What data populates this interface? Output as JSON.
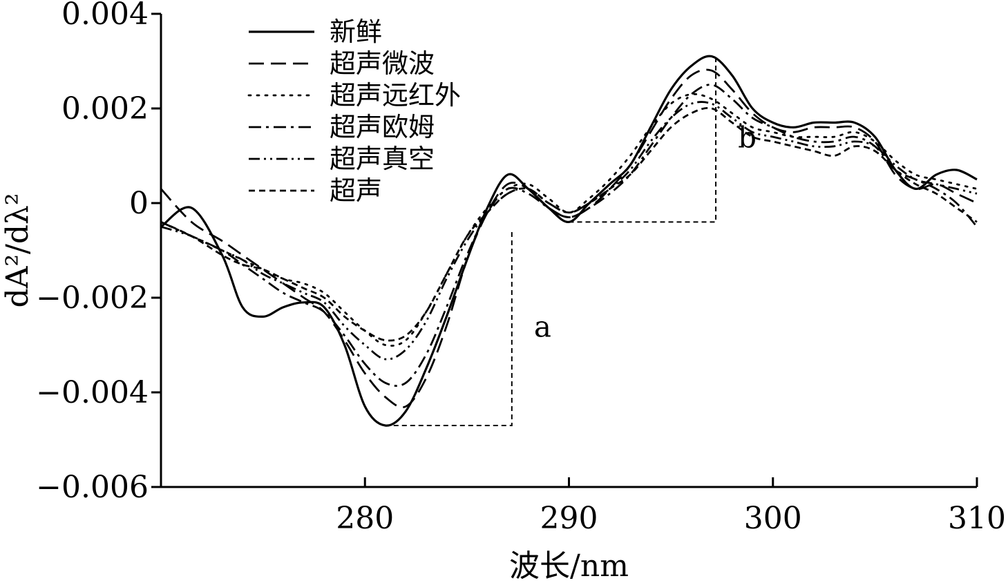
{
  "chart_data": {
    "type": "line",
    "xlabel": "波长/nm",
    "ylabel": "dA²/dλ²",
    "xlim": [
      270,
      310
    ],
    "ylim": [
      -0.006,
      0.004
    ],
    "x_ticks": [
      280,
      290,
      300,
      310
    ],
    "x_tick_labels": [
      "280",
      "290",
      "300",
      "310"
    ],
    "y_ticks": [
      0.004,
      0.002,
      0,
      -0.002,
      -0.004,
      -0.006
    ],
    "y_tick_labels": [
      "0.004",
      "0.002",
      "0",
      "−0.002",
      "−0.004",
      "−0.006"
    ],
    "grid": false,
    "legend_position": "top-left",
    "series": [
      {
        "name": "新鲜",
        "dash": "solid",
        "x": [
          270,
          271.5,
          273,
          274,
          275,
          276,
          277,
          278,
          279,
          280,
          281,
          282,
          283,
          284,
          285,
          286,
          287,
          288,
          289,
          290,
          291,
          292,
          293,
          294,
          295,
          296,
          297,
          298,
          299,
          300,
          301,
          302,
          303,
          304,
          305,
          306,
          307,
          308,
          309,
          310
        ],
        "values": [
          -0.0005,
          -0.0001,
          -0.0011,
          -0.0022,
          -0.0024,
          -0.0022,
          -0.0021,
          -0.0022,
          -0.003,
          -0.0043,
          -0.0047,
          -0.0044,
          -0.0035,
          -0.0024,
          -0.0012,
          -0.0001,
          0.0006,
          0.0003,
          -0.0001,
          -0.0004,
          0.0,
          0.0004,
          0.0008,
          0.0016,
          0.0024,
          0.0029,
          0.0031,
          0.0027,
          0.002,
          0.0017,
          0.0016,
          0.0017,
          0.0017,
          0.0017,
          0.0014,
          0.0007,
          0.0003,
          0.0006,
          0.0007,
          0.0005
        ]
      },
      {
        "name": "超声微波",
        "dash": "dashed",
        "x": [
          270,
          271.5,
          273,
          274,
          275,
          276,
          277,
          278,
          279,
          280,
          281,
          282,
          283,
          284,
          285,
          286,
          287,
          288,
          289,
          290,
          291,
          292,
          293,
          294,
          295,
          296,
          297,
          298,
          299,
          300,
          301,
          302,
          303,
          304,
          305,
          306,
          307,
          308,
          309,
          310
        ],
        "values": [
          0.0003,
          -0.0004,
          -0.0008,
          -0.0011,
          -0.0014,
          -0.0017,
          -0.002,
          -0.0023,
          -0.0029,
          -0.0036,
          -0.0041,
          -0.0043,
          -0.0037,
          -0.0026,
          -0.0012,
          -0.0002,
          0.0004,
          0.0003,
          -0.0001,
          -0.0003,
          -0.0001,
          0.0003,
          0.0008,
          0.0015,
          0.0022,
          0.0027,
          0.0028,
          0.0024,
          0.0019,
          0.0016,
          0.0015,
          0.0016,
          0.0016,
          0.0016,
          0.0013,
          0.0006,
          0.0003,
          0.0004,
          0.0002,
          0.0
        ]
      },
      {
        "name": "超声远红外",
        "dash": "dotted",
        "x": [
          270,
          271.5,
          273,
          274,
          275,
          276,
          277,
          278,
          279,
          280,
          281,
          282,
          283,
          284,
          285,
          286,
          287,
          288,
          289,
          290,
          291,
          292,
          293,
          294,
          295,
          296,
          297,
          298,
          299,
          300,
          301,
          302,
          303,
          304,
          305,
          306,
          307,
          308,
          309,
          310
        ],
        "values": [
          -0.0004,
          -0.0007,
          -0.001,
          -0.0012,
          -0.0014,
          -0.0016,
          -0.0017,
          -0.0019,
          -0.0023,
          -0.0027,
          -0.003,
          -0.0029,
          -0.0023,
          -0.0015,
          -0.0007,
          -0.0001,
          0.0003,
          0.0004,
          0.0001,
          -0.0002,
          0.0001,
          0.0005,
          0.001,
          0.0016,
          0.0021,
          0.0023,
          0.0022,
          0.0019,
          0.0016,
          0.0015,
          0.0014,
          0.0014,
          0.0014,
          0.0015,
          0.0013,
          0.0009,
          0.0006,
          0.0005,
          0.0004,
          0.0003
        ]
      },
      {
        "name": "超声欧姆",
        "dash": "dashdot",
        "x": [
          270,
          271.5,
          273,
          274,
          275,
          276,
          277,
          278,
          279,
          280,
          281,
          282,
          283,
          284,
          285,
          286,
          287,
          288,
          289,
          290,
          291,
          292,
          293,
          294,
          295,
          296,
          297,
          298,
          299,
          300,
          301,
          302,
          303,
          304,
          305,
          306,
          307,
          308,
          309,
          310
        ],
        "values": [
          -0.0004,
          -0.0007,
          -0.001,
          -0.0013,
          -0.0016,
          -0.0019,
          -0.0021,
          -0.0023,
          -0.0028,
          -0.0034,
          -0.0038,
          -0.0038,
          -0.0032,
          -0.0022,
          -0.0011,
          -0.0002,
          0.0003,
          0.0002,
          -0.0001,
          -0.0003,
          -0.0001,
          0.0002,
          0.0006,
          0.0012,
          0.0018,
          0.0023,
          0.0025,
          0.0022,
          0.0018,
          0.0016,
          0.0014,
          0.0013,
          0.0013,
          0.0014,
          0.0012,
          0.0007,
          0.0005,
          0.0003,
          0.0,
          -0.0005
        ]
      },
      {
        "name": "超声真空",
        "dash": "dashdotdot",
        "x": [
          270,
          271.5,
          273,
          274,
          275,
          276,
          277,
          278,
          279,
          280,
          281,
          282,
          283,
          284,
          285,
          286,
          287,
          288,
          289,
          290,
          291,
          292,
          293,
          294,
          295,
          296,
          297,
          298,
          299,
          300,
          301,
          302,
          303,
          304,
          305,
          306,
          307,
          308,
          309,
          310
        ],
        "values": [
          -0.0005,
          -0.0007,
          -0.001,
          -0.0012,
          -0.0015,
          -0.0017,
          -0.0019,
          -0.0021,
          -0.0026,
          -0.003,
          -0.0033,
          -0.0031,
          -0.0025,
          -0.0016,
          -0.0008,
          -0.0002,
          0.0002,
          0.0003,
          0.0,
          -0.0002,
          0.0,
          0.0003,
          0.0007,
          0.0013,
          0.0018,
          0.0021,
          0.0021,
          0.0018,
          0.0015,
          0.0014,
          0.0013,
          0.0012,
          0.0012,
          0.0013,
          0.0012,
          0.0008,
          0.0005,
          0.0004,
          0.0003,
          0.0002
        ]
      },
      {
        "name": "超声",
        "dash": "shortdash",
        "x": [
          270,
          271.5,
          273,
          274,
          275,
          276,
          277,
          278,
          279,
          280,
          281,
          282,
          283,
          284,
          285,
          286,
          287,
          288,
          289,
          290,
          291,
          292,
          293,
          294,
          295,
          296,
          297,
          298,
          299,
          300,
          301,
          302,
          303,
          304,
          305,
          306,
          307,
          308,
          309,
          310
        ],
        "values": [
          -0.0004,
          -0.0007,
          -0.0011,
          -0.0013,
          -0.0014,
          -0.0016,
          -0.0018,
          -0.002,
          -0.0024,
          -0.0027,
          -0.0029,
          -0.0028,
          -0.0023,
          -0.0015,
          -0.0007,
          -0.0002,
          0.0002,
          0.0003,
          0.0,
          -0.0002,
          0.0,
          0.0003,
          0.0006,
          0.0011,
          0.0016,
          0.0019,
          0.002,
          0.0017,
          0.0014,
          0.0013,
          0.0012,
          0.0011,
          0.001,
          0.0012,
          0.0011,
          0.0007,
          0.0004,
          0.0002,
          -0.0001,
          -0.0004
        ]
      }
    ],
    "annotations": [
      {
        "label": "a",
        "x_from": 281,
        "x_to": 287.2,
        "y_min": -0.0047,
        "y_max": -0.0006
      },
      {
        "label": "b",
        "x_from": 290,
        "x_to": 297.2,
        "y_min": -0.0004,
        "y_max": 0.0031
      }
    ]
  }
}
